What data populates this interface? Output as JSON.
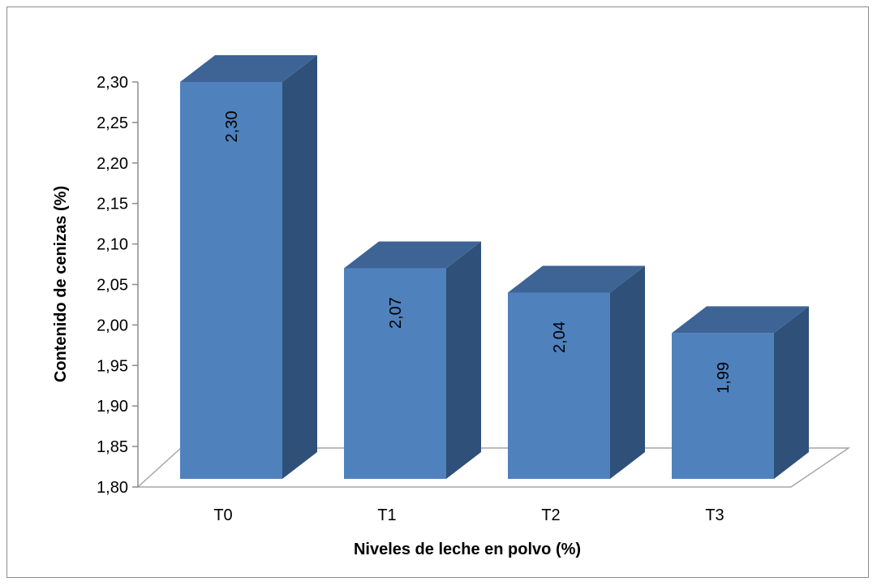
{
  "chart_data": {
    "type": "bar",
    "style": "3d-column",
    "categories": [
      "T0",
      "T1",
      "T2",
      "T3"
    ],
    "values": [
      2.3,
      2.07,
      2.04,
      1.99
    ],
    "data_labels": [
      "2,30",
      "2,07",
      "2,04",
      "1,99"
    ],
    "xlabel": "Niveles de leche en polvo (%)",
    "ylabel": "Contenido de cenizas (%)",
    "ylim": [
      1.8,
      2.3
    ],
    "yticks": [
      "1,80",
      "1,85",
      "1,90",
      "1,95",
      "2,00",
      "2,05",
      "2,10",
      "2,15",
      "2,20",
      "2,25",
      "2,30"
    ],
    "grid": false,
    "legend": "none",
    "colors": {
      "front": "#4f81bd",
      "top": "#3e6496",
      "side": "#2f5079",
      "floor": "#a6a6a6"
    }
  }
}
